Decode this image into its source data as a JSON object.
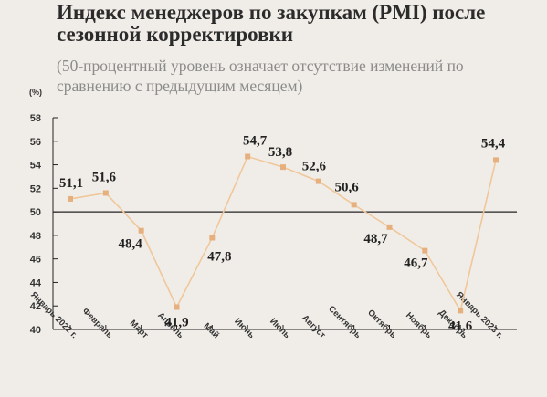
{
  "title": "Индекс менеджеров по закупкам (PMI) после сезонной корректировки",
  "subtitle": "(50-процентный уровень означает отсутствие изменений по сравнению с предыдущим месяцем)",
  "colors": {
    "line": "#f0c79a",
    "marker": "#e6b07e",
    "axis": "#222222",
    "background": "#f0ede8"
  },
  "chart_data": {
    "type": "line",
    "title": "Индекс менеджеров по закупкам (PMI) после сезонной корректировки",
    "subtitle": "(50-процентный уровень означает отсутствие изменений по сравнению с предыдущим месяцем)",
    "ylabel": "(%)",
    "xlabel": "",
    "ylim": [
      40,
      58
    ],
    "yticks": [
      40,
      42,
      44,
      46,
      48,
      50,
      52,
      54,
      56,
      58
    ],
    "ytick_labels": [
      "40",
      "42",
      "44",
      "46",
      "48",
      "50",
      "52",
      "54",
      "56",
      "58"
    ],
    "reference_line": 50,
    "grid": false,
    "categories": [
      "Январь 2022 г.",
      "Февраль",
      "Март",
      "Апрель",
      "Май",
      "Июнь",
      "Июль",
      "Август",
      "Сентябрь",
      "Октябрь",
      "Ноябрь",
      "Декабрь",
      "Январь 2023 г."
    ],
    "values": [
      51.1,
      51.6,
      48.4,
      41.9,
      47.8,
      54.7,
      53.8,
      52.6,
      50.6,
      48.7,
      46.7,
      41.6,
      54.4
    ],
    "data_labels": [
      "51,1",
      "51,6",
      "48,4",
      "41,9",
      "47,8",
      "54,7",
      "53,8",
      "52,6",
      "50,6",
      "48,7",
      "46,7",
      "41,6",
      "54,4"
    ]
  }
}
